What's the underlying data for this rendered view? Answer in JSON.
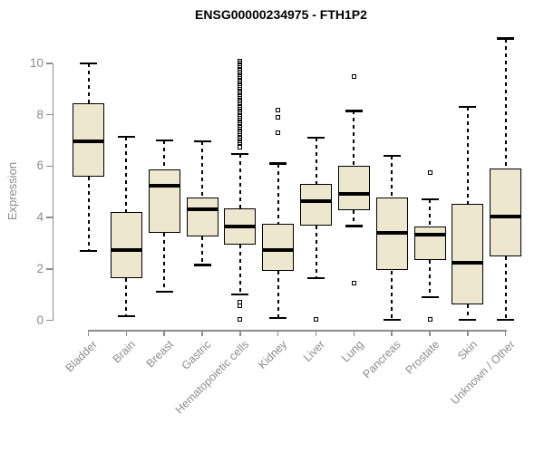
{
  "page": {
    "background": "#ffffff"
  },
  "chart_data": {
    "type": "boxplot",
    "title": "ENSG00000234975 - FTH1P2",
    "ylabel": "Expression",
    "xlabel": "",
    "ylim": [
      0,
      10
    ],
    "yticks": [
      0,
      2,
      4,
      6,
      8,
      10
    ],
    "grid": false,
    "legend": false,
    "colors": {
      "box_fill": "#EDE7CF",
      "box_border": "#000000",
      "median": "#000000",
      "whisker": "#000000",
      "axis": "#8c8c8c",
      "tick_label": "#8c8c8c",
      "title": "#000000",
      "background": "#ffffff"
    },
    "categories": [
      "Bladder",
      "Brain",
      "Breast",
      "Gastric",
      "Hematopoietic cells",
      "Kidney",
      "Liver",
      "Lung",
      "Pancreas",
      "Prostate",
      "Skin",
      "Unknown / Other"
    ],
    "series": [
      {
        "category": "Bladder",
        "whisker_low": 2.7,
        "q1": 5.6,
        "median": 6.95,
        "q3": 8.45,
        "whisker_high": 10.0,
        "outliers": []
      },
      {
        "category": "Brain",
        "whisker_low": 0.15,
        "q1": 1.65,
        "median": 2.72,
        "q3": 4.2,
        "whisker_high": 7.15,
        "outliers": []
      },
      {
        "category": "Breast",
        "whisker_low": 1.1,
        "q1": 3.4,
        "median": 5.25,
        "q3": 5.87,
        "whisker_high": 7.0,
        "outliers": []
      },
      {
        "category": "Gastric",
        "whisker_low": 2.15,
        "q1": 3.28,
        "median": 4.32,
        "q3": 4.77,
        "whisker_high": 6.97,
        "outliers": []
      },
      {
        "category": "Hematopoietic cells",
        "whisker_low": 1.0,
        "q1": 2.93,
        "median": 3.64,
        "q3": 4.35,
        "whisker_high": 6.47,
        "outliers": [
          10.08,
          10.02,
          9.96,
          9.9,
          9.84,
          9.78,
          9.72,
          9.66,
          9.6,
          9.54,
          9.48,
          9.42,
          9.36,
          9.3,
          9.24,
          9.18,
          9.12,
          9.06,
          9.0,
          8.94,
          8.88,
          8.82,
          8.76,
          8.7,
          8.64,
          8.58,
          8.52,
          8.46,
          8.4,
          8.34,
          8.28,
          8.22,
          8.16,
          8.1,
          8.04,
          7.98,
          7.92,
          7.86,
          7.8,
          7.74,
          7.68,
          7.62,
          7.56,
          7.5,
          7.44,
          7.38,
          7.32,
          7.26,
          7.2,
          7.14,
          7.08,
          7.02,
          6.96,
          6.9,
          6.84,
          6.78,
          6.72,
          0.7,
          0.55,
          0.02
        ]
      },
      {
        "category": "Kidney",
        "whisker_low": 0.1,
        "q1": 1.94,
        "median": 2.72,
        "q3": 3.75,
        "whisker_high": 6.1,
        "outliers": [
          8.2,
          7.9,
          7.3
        ]
      },
      {
        "category": "Liver",
        "whisker_low": 1.65,
        "q1": 3.7,
        "median": 4.63,
        "q3": 5.3,
        "whisker_high": 7.1,
        "outliers": [
          0.02
        ]
      },
      {
        "category": "Lung",
        "whisker_low": 3.67,
        "q1": 4.28,
        "median": 4.91,
        "q3": 6.0,
        "whisker_high": 8.15,
        "outliers": [
          9.5,
          1.45
        ]
      },
      {
        "category": "Pancreas",
        "whisker_low": 0.03,
        "q1": 1.94,
        "median": 3.4,
        "q3": 4.78,
        "whisker_high": 6.4,
        "outliers": []
      },
      {
        "category": "Prostate",
        "whisker_low": 0.9,
        "q1": 2.35,
        "median": 3.32,
        "q3": 3.65,
        "whisker_high": 4.7,
        "outliers": [
          5.75,
          0.02
        ]
      },
      {
        "category": "Skin",
        "whisker_low": 0.03,
        "q1": 0.6,
        "median": 2.25,
        "q3": 4.55,
        "whisker_high": 8.32,
        "outliers": []
      },
      {
        "category": "Unknown / Other",
        "whisker_low": 0.03,
        "q1": 2.5,
        "median": 4.05,
        "q3": 5.9,
        "whisker_high": 10.97,
        "outliers": []
      }
    ]
  }
}
